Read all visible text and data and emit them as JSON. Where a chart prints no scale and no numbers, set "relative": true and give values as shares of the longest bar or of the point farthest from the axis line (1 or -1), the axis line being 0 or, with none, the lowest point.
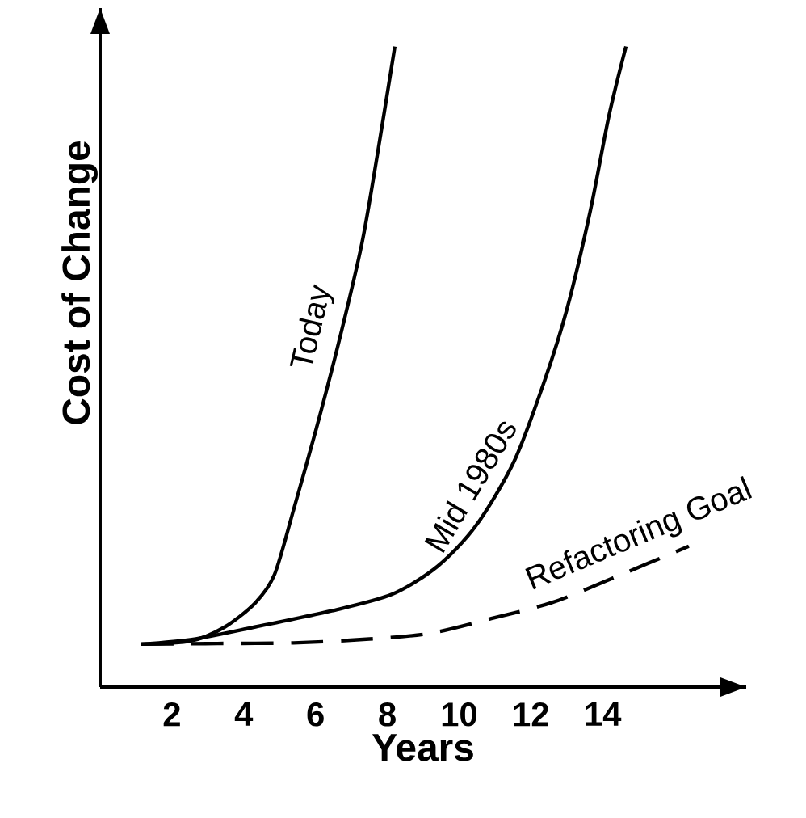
{
  "chart_data": {
    "type": "line",
    "relative": true,
    "xlabel": "Years",
    "ylabel": "Cost of Change",
    "xlim": [
      0,
      18
    ],
    "xticks": [
      2,
      4,
      6,
      8,
      10,
      12,
      14
    ],
    "series": [
      {
        "name": "Today",
        "color": "#000000",
        "line_style": "solid",
        "x": [
          1.15,
          2.53,
          3.48,
          4.33,
          4.86,
          5.39,
          6.02,
          6.66,
          7.29,
          7.72,
          8.21
        ],
        "values": [
          0.067,
          0.072,
          0.094,
          0.132,
          0.176,
          0.277,
          0.403,
          0.541,
          0.692,
          0.83,
          1
        ]
      },
      {
        "name": "Mid 1980s",
        "color": "#000000",
        "line_style": "solid",
        "x": [
          1.15,
          2.63,
          4.33,
          6.45,
          8.14,
          9.41,
          10.47,
          11.53,
          12.38,
          13.01,
          13.65,
          14.18,
          14.65
        ],
        "values": [
          0.067,
          0.075,
          0.094,
          0.119,
          0.145,
          0.189,
          0.252,
          0.352,
          0.478,
          0.591,
          0.742,
          0.893,
          1
        ]
      },
      {
        "name": "Refactoring Goal",
        "color": "#000000",
        "line_style": "dashed",
        "x": [
          1.15,
          3.27,
          5.39,
          7.5,
          9.2,
          10.9,
          12.59,
          14.28,
          16.4
        ],
        "values": [
          0.067,
          0.068,
          0.069,
          0.075,
          0.084,
          0.107,
          0.132,
          0.17,
          0.22
        ]
      }
    ]
  }
}
